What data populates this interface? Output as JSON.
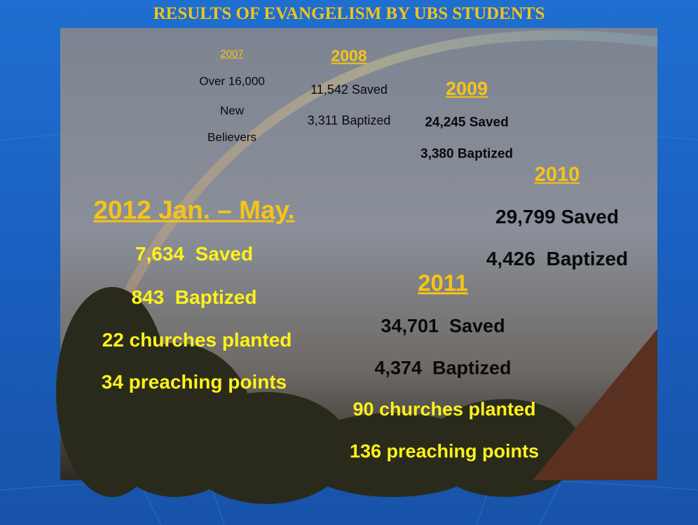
{
  "title": "RESULTS OF EVANGELISM BY UBS STUDENTS",
  "sections": [
    {
      "year": "2007",
      "lines": [
        "Over 16,000",
        "New",
        "Believers"
      ]
    },
    {
      "year": "2008",
      "lines": [
        "11,542 Saved",
        "3,311 Baptized"
      ]
    },
    {
      "year": "2009",
      "lines": [
        "24,245 Saved",
        "3,380 Baptized"
      ]
    },
    {
      "year": "2010",
      "lines": [
        "29,799 Saved",
        "4,426  Baptized"
      ]
    },
    {
      "year": "2011",
      "lines": [
        "34,701  Saved",
        "4,374  Baptized",
        "90 churches planted",
        "136 preaching points"
      ]
    },
    {
      "year": "2012 Jan. – May.",
      "lines": [
        "7,634  Saved",
        "843  Baptized",
        "22 churches planted",
        "34 preaching points"
      ]
    }
  ]
}
